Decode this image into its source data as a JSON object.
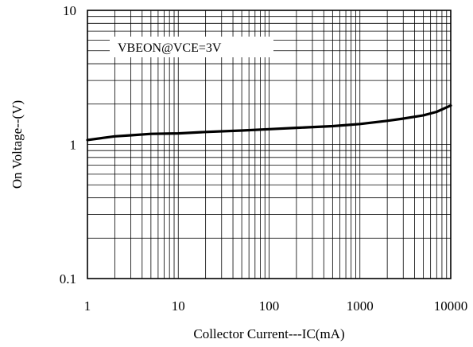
{
  "chart_data": {
    "type": "line",
    "title": "",
    "xlabel": "Collector Current---IC(mA)",
    "ylabel": "On Voltage--(V)",
    "x_scale": "log",
    "y_scale": "log",
    "xlim": [
      1,
      10000
    ],
    "ylim": [
      0.1,
      10
    ],
    "grid": true,
    "x_ticks": [
      1,
      10,
      100,
      1000,
      10000
    ],
    "x_tick_labels": [
      "1",
      "10",
      "100",
      "1000",
      "10000"
    ],
    "y_ticks": [
      0.1,
      1,
      10
    ],
    "y_tick_labels": [
      "0.1",
      "1",
      "10"
    ],
    "legend": {
      "text": "VBEON@VCE=3V",
      "placement": "top-left"
    },
    "series": [
      {
        "name": "VBEON@VCE=3V",
        "color": "#000000",
        "x": [
          1,
          1.5,
          2,
          3,
          5,
          10,
          20,
          50,
          100,
          200,
          500,
          1000,
          2000,
          3000,
          5000,
          7000,
          10000
        ],
        "y": [
          1.08,
          1.12,
          1.15,
          1.17,
          1.2,
          1.21,
          1.24,
          1.27,
          1.3,
          1.33,
          1.37,
          1.42,
          1.5,
          1.56,
          1.65,
          1.75,
          1.95
        ]
      }
    ]
  }
}
